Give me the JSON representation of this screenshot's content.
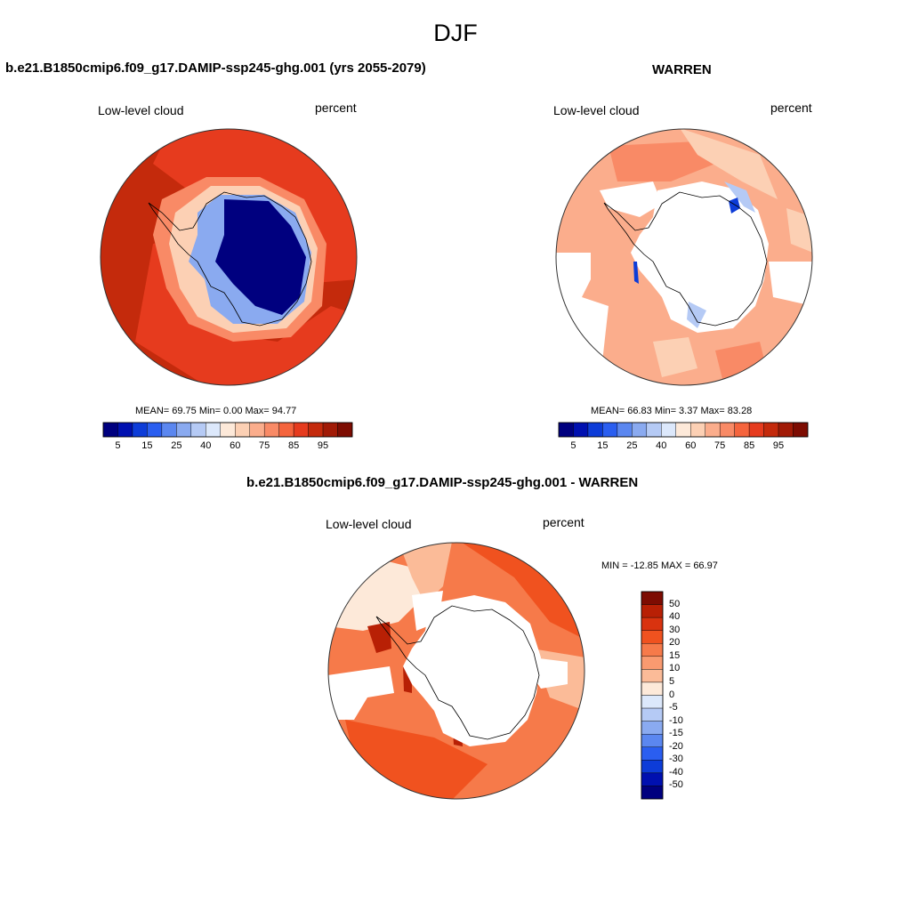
{
  "header": {
    "title": "DJF"
  },
  "panels": [
    {
      "title": "b.e21.B1850cmip6.f09_g17.DAMIP-ssp245-ghg.001 (yrs 2055-2079)",
      "left_label": "Low-level cloud",
      "right_label": "percent",
      "stats": "MEAN=  69.75  Min=   0.00  Max=  94.77"
    },
    {
      "title": "WARREN",
      "left_label": "Low-level cloud",
      "right_label": "percent",
      "stats": "MEAN=  66.83  Min=   3.37  Max=  83.28"
    },
    {
      "title": "b.e21.B1850cmip6.f09_g17.DAMIP-ssp245-ghg.001 - WARREN",
      "left_label": "Low-level cloud",
      "right_label": "percent",
      "stats": "MIN = -12.85 MAX =  66.97"
    }
  ],
  "colorbar_abs": {
    "colors": [
      "#00007f",
      "#0010b0",
      "#0d3cd8",
      "#2a5ef0",
      "#5b87f0",
      "#8aaaf0",
      "#b5caf5",
      "#dce8fb",
      "#fde9d9",
      "#fcd0b4",
      "#fbad8c",
      "#f98a66",
      "#f5643d",
      "#e63b1e",
      "#c42a0c",
      "#a11a06",
      "#7d0c02"
    ],
    "ticks": [
      "5",
      "15",
      "25",
      "40",
      "60",
      "75",
      "85",
      "95"
    ]
  },
  "colorbar_diff": {
    "colors": [
      "#7d0c02",
      "#b82005",
      "#d9330f",
      "#f0521f",
      "#f67a4a",
      "#f99a70",
      "#fbbb98",
      "#fde9d9",
      "#dce8fb",
      "#b5caf5",
      "#8aaaf0",
      "#5b87f0",
      "#2a5ef0",
      "#0d3cd8",
      "#0010b0",
      "#00007f"
    ],
    "ticks": [
      "50",
      "40",
      "30",
      "20",
      "15",
      "10",
      "5",
      "0",
      "-5",
      "-10",
      "-15",
      "-20",
      "-30",
      "-40",
      "-50"
    ]
  },
  "maps": [
    {
      "regions": [
        {
          "kind": "ocean-max",
          "color": "#c42a0c"
        },
        {
          "kind": "ocean-high",
          "color": "#e63b1e"
        },
        {
          "kind": "coast-mid",
          "color": "#f98a66"
        },
        {
          "kind": "coast-low",
          "color": "#fcd0b4"
        },
        {
          "kind": "ice-edge",
          "color": "#8aaaf0"
        },
        {
          "kind": "interior",
          "color": "#00007f"
        }
      ]
    },
    {
      "regions": [
        {
          "kind": "ocean-main",
          "color": "#fbad8c"
        },
        {
          "kind": "ocean-patch",
          "color": "#f98a66"
        },
        {
          "kind": "ocean-light",
          "color": "#fcd0b4"
        },
        {
          "kind": "missing",
          "color": "#ffffff"
        },
        {
          "kind": "coast-blue",
          "color": "#b5caf5"
        },
        {
          "kind": "coast-dark-blue",
          "color": "#0d3cd8"
        }
      ]
    },
    {
      "regions": [
        {
          "kind": "diff-main",
          "color": "#f67a4a"
        },
        {
          "kind": "diff-high",
          "color": "#f0521f"
        },
        {
          "kind": "diff-light",
          "color": "#fbbb98"
        },
        {
          "kind": "diff-pale",
          "color": "#fde9d9"
        },
        {
          "kind": "diff-peak",
          "color": "#b82005"
        },
        {
          "kind": "missing",
          "color": "#ffffff"
        }
      ]
    }
  ]
}
